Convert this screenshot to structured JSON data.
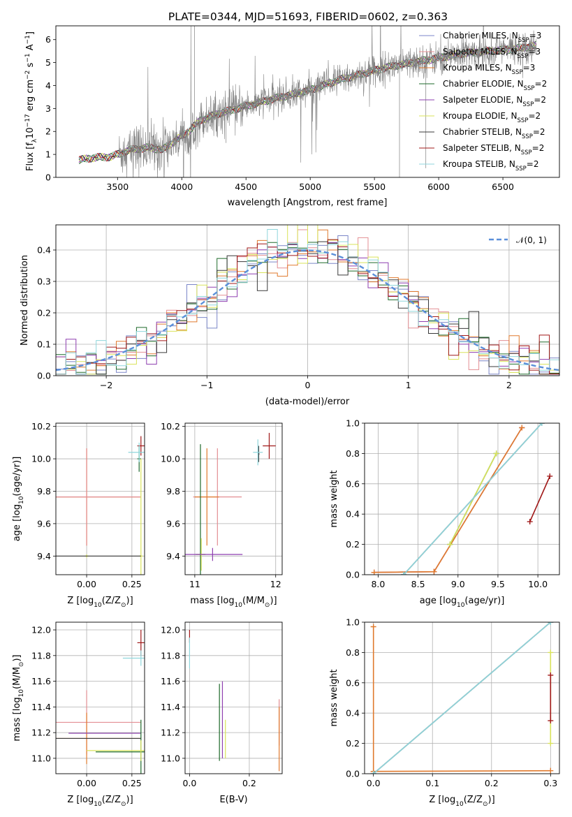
{
  "title": "PLATE=0344, MJD=51693, FIBERID=0602, z=0.363",
  "colors": {
    "Chabrier MILES": "#7b86c8",
    "Salpeter MILES": "#e38e93",
    "Kroupa MILES": "#e07a2e",
    "Chabrier ELODIE": "#1e6a2a",
    "Salpeter ELODIE": "#8e3fb0",
    "Kroupa ELODIE": "#d9e35a",
    "Chabrier STELIB": "#3a3a3a",
    "Salpeter STELIB": "#a01818",
    "Kroupa STELIB": "#8fd6dc",
    "data": "#808080",
    "normal": "#5b8fd9"
  },
  "legend": {
    "entries": [
      {
        "name": "Chabrier MILES",
        "pre": "Chabrier MILES, N",
        "sub": "SSP",
        "post": "=3"
      },
      {
        "name": "Salpeter MILES",
        "pre": "Salpeter MILES, N",
        "sub": "SSP",
        "post": "=3"
      },
      {
        "name": "Kroupa MILES",
        "pre": "Kroupa MILES, N",
        "sub": "SSP",
        "post": "=3"
      },
      {
        "name": "Chabrier ELODIE",
        "pre": "Chabrier ELODIE, N",
        "sub": "SSP",
        "post": "=2"
      },
      {
        "name": "Salpeter ELODIE",
        "pre": "Salpeter ELODIE, N",
        "sub": "SSP",
        "post": "=2"
      },
      {
        "name": "Kroupa ELODIE",
        "pre": "Kroupa ELODIE, N",
        "sub": "SSP",
        "post": "=2"
      },
      {
        "name": "Chabrier STELIB",
        "pre": "Chabrier STELIB, N",
        "sub": "SSP",
        "post": "=2"
      },
      {
        "name": "Salpeter STELIB",
        "pre": "Salpeter STELIB, N",
        "sub": "SSP",
        "post": "=2"
      },
      {
        "name": "Kroupa STELIB",
        "pre": "Kroupa STELIB, N",
        "sub": "SSP",
        "post": "=2"
      }
    ]
  },
  "chart_data": [
    {
      "id": "spectrum",
      "type": "line",
      "title": "PLATE=0344, MJD=51693, FIBERID=0602, z=0.363",
      "xlabel": "wavelength [Angstrom, rest frame]",
      "ylabel": "Flux [f",
      "ylabel_sub": "λ",
      "ylabel_rest": "10",
      "ylabel_sup1": "−17",
      "ylabel_mid": " erg cm",
      "ylabel_sup2": "−2",
      "ylabel_mid2": " s",
      "ylabel_sup3": "−1",
      "ylabel_mid3": " A",
      "ylabel_sup4": "−1",
      "ylabel_end": "]",
      "xlim": [
        3020,
        6940
      ],
      "ylim": [
        0,
        6.6
      ],
      "xticks": [
        3500,
        4000,
        4500,
        5000,
        5500,
        6000,
        6500
      ],
      "yticks": [
        0,
        1,
        2,
        3,
        4,
        5,
        6
      ],
      "continuum": [
        [
          3200,
          0.75
        ],
        [
          3300,
          0.85
        ],
        [
          3450,
          0.9
        ],
        [
          3600,
          1.2
        ],
        [
          3750,
          1.3
        ],
        [
          3850,
          1.2
        ],
        [
          3950,
          1.6
        ],
        [
          4050,
          2.0
        ],
        [
          4150,
          2.5
        ],
        [
          4300,
          2.8
        ],
        [
          4500,
          3.1
        ],
        [
          4700,
          3.4
        ],
        [
          4850,
          3.6
        ],
        [
          5000,
          3.8
        ],
        [
          5200,
          4.2
        ],
        [
          5400,
          4.5
        ],
        [
          5600,
          4.8
        ],
        [
          5800,
          5.0
        ],
        [
          6000,
          5.2
        ],
        [
          6200,
          5.4
        ],
        [
          6400,
          5.5
        ],
        [
          6600,
          5.6
        ],
        [
          6760,
          5.75
        ]
      ],
      "model_start": 3200,
      "model_end": 6760,
      "data_gap": [
        3220,
        3510
      ]
    },
    {
      "id": "residuals",
      "type": "step",
      "xlabel": "(data-model)/error",
      "ylabel": "Normed distribution",
      "xlim": [
        -2.5,
        2.5
      ],
      "ylim": [
        0,
        0.48
      ],
      "xticks": [
        -2,
        -1,
        0,
        1,
        2
      ],
      "xtick_labels": [
        "−2",
        "−1",
        "0",
        "1",
        "2"
      ],
      "yticks": [
        0.0,
        0.1,
        0.2,
        0.3,
        0.4
      ],
      "ytick_labels": [
        "0.0",
        "0.1",
        "0.2",
        "0.3",
        "0.4"
      ],
      "normal_label": "𝒩(0, 1)",
      "bins": 50
    },
    {
      "id": "age-Z",
      "type": "errorbar",
      "xlabel_pre": "Z [log",
      "xlabel_sub": "10",
      "xlabel_post": "(Z/Z",
      "xlabel_sub2": "⊙",
      "xlabel_end": ")]",
      "ylabel_pre": "age  [log",
      "ylabel_sub": "10",
      "ylabel_post": "(age/yr)]",
      "xlim": [
        -0.17,
        0.32
      ],
      "ylim": [
        9.285,
        10.22
      ],
      "xticks": [
        0.0,
        0.25
      ],
      "xtick_labels": [
        "0.00",
        "0.25"
      ],
      "yticks": [
        9.4,
        9.6,
        9.8,
        10.0,
        10.2
      ],
      "ytick_labels": [
        "9.4",
        "9.6",
        "9.8",
        "10.0",
        "10.2"
      ],
      "points": [
        {
          "s": "Kroupa MILES",
          "x": 0.0,
          "y": 9.765,
          "xerr": 0.3,
          "yerr": 0.3
        },
        {
          "s": "Salpeter MILES",
          "x": 0.0,
          "y": 9.765,
          "xerr": 0.3,
          "yerr": 0.3
        },
        {
          "s": "Chabrier ELODIE",
          "x": 0.29,
          "y": 10.0,
          "xerr": 0.01,
          "yerr": 0.08
        },
        {
          "s": "Kroupa ELODIE",
          "x": 0.0,
          "y": 9.4,
          "xerr": 0.01,
          "yerr": 0.01
        },
        {
          "s": "Kroupa ELODIE",
          "x": 0.3,
          "y": 9.4,
          "xerr": 0.01,
          "yerr": 0.6
        },
        {
          "s": "Salpeter STELIB",
          "x": 0.3,
          "y": 10.08,
          "xerr": 0.02,
          "yerr": 0.06
        },
        {
          "s": "Kroupa STELIB",
          "x": 0.29,
          "y": 10.04,
          "xerr": 0.06,
          "yerr": 0.06
        },
        {
          "s": "Chabrier STELIB",
          "x": 0.0,
          "y": 9.4,
          "xerr": 0.3,
          "yerr": 0.0
        }
      ]
    },
    {
      "id": "age-mass",
      "type": "errorbar",
      "xlabel_pre": "mass [log",
      "xlabel_sub": "10",
      "xlabel_post": "(M/M",
      "xlabel_sub2": "⊙",
      "xlabel_end": ")]",
      "xlim": [
        10.88,
        12.08
      ],
      "ylim": [
        9.285,
        10.22
      ],
      "xticks": [
        11,
        12
      ],
      "xtick_labels": [
        "11",
        "12"
      ],
      "yticks": [
        9.4,
        9.6,
        9.8,
        10.0,
        10.2
      ],
      "ytick_labels": [
        "9.4",
        "9.6",
        "9.8",
        "10.0",
        "10.2"
      ],
      "points": [
        {
          "s": "Salpeter MILES",
          "x": 11.28,
          "y": 9.765,
          "xerr": 0.3,
          "yerr": 0.3
        },
        {
          "s": "Kroupa MILES",
          "x": 11.15,
          "y": 9.765,
          "xerr": 0.15,
          "yerr": 0.3
        },
        {
          "s": "Chabrier ELODIE",
          "x": 11.07,
          "y": 9.41,
          "xerr": 0.06,
          "yerr": 0.68
        },
        {
          "s": "Kroupa ELODIE",
          "x": 11.08,
          "y": 9.41,
          "xerr": 0.06,
          "yerr": 0.1
        },
        {
          "s": "Salpeter ELODIE",
          "x": 11.22,
          "y": 9.41,
          "xerr": 0.37,
          "yerr": 0.04
        },
        {
          "s": "Chabrier STELIB",
          "x": 11.79,
          "y": 10.03,
          "xerr": 0.01,
          "yerr": 0.05
        },
        {
          "s": "Salpeter STELIB",
          "x": 11.92,
          "y": 10.08,
          "xerr": 0.08,
          "yerr": 0.08
        },
        {
          "s": "Kroupa STELIB",
          "x": 11.78,
          "y": 10.04,
          "xerr": 0.06,
          "yerr": 0.08
        }
      ]
    },
    {
      "id": "mw-age",
      "type": "line",
      "xlabel_pre": "age  [log",
      "xlabel_sub": "10",
      "xlabel_post": "(age/yr)]",
      "ylabel": "mass weight",
      "xlim": [
        7.83,
        10.27
      ],
      "ylim": [
        0,
        1.0
      ],
      "xticks": [
        8.0,
        8.5,
        9.0,
        9.5,
        10.0
      ],
      "xtick_labels": [
        "8.0",
        "8.5",
        "9.0",
        "9.5",
        "10.0"
      ],
      "yticks": [
        0.0,
        0.2,
        0.4,
        0.6,
        0.8,
        1.0
      ],
      "ytick_labels": [
        "0.0",
        "0.2",
        "0.4",
        "0.6",
        "0.8",
        "1.0"
      ],
      "lines": [
        {
          "s": "Chabrier MILES",
          "x": [
            7.95,
            8.7,
            9.8
          ],
          "y": [
            0.015,
            0.02,
            0.97
          ]
        },
        {
          "s": "Salpeter MILES",
          "x": [
            7.95,
            8.7,
            9.8
          ],
          "y": [
            0.015,
            0.02,
            0.97
          ]
        },
        {
          "s": "Kroupa MILES",
          "x": [
            7.95,
            8.7,
            9.8
          ],
          "y": [
            0.015,
            0.02,
            0.97
          ]
        },
        {
          "s": "Chabrier ELODIE",
          "x": [
            8.9,
            9.48
          ],
          "y": [
            0.2,
            0.8
          ]
        },
        {
          "s": "Kroupa ELODIE",
          "x": [
            8.9,
            9.48
          ],
          "y": [
            0.2,
            0.8
          ]
        },
        {
          "s": "Chabrier STELIB",
          "x": [
            8.32,
            10.05
          ],
          "y": [
            0.0,
            1.0
          ]
        },
        {
          "s": "Kroupa STELIB",
          "x": [
            8.32,
            10.05
          ],
          "y": [
            0.0,
            1.0
          ]
        },
        {
          "s": "Salpeter STELIB",
          "x": [
            9.9,
            10.15
          ],
          "y": [
            0.35,
            0.65
          ]
        }
      ]
    },
    {
      "id": "mass-Z",
      "type": "errorbar",
      "xlabel_pre": "Z [log",
      "xlabel_sub": "10",
      "xlabel_post": "(Z/Z",
      "xlabel_sub2": "⊙",
      "xlabel_end": ")]",
      "ylabel_pre": "mass [log",
      "ylabel_sub": "10",
      "ylabel_post": "(M/M",
      "ylabel_sub2": "⊙",
      "ylabel_end": ")]",
      "xlim": [
        -0.17,
        0.32
      ],
      "ylim": [
        10.88,
        12.06
      ],
      "xticks": [
        0.0,
        0.25
      ],
      "xtick_labels": [
        "0.00",
        "0.25"
      ],
      "yticks": [
        11.0,
        11.2,
        11.4,
        11.6,
        11.8,
        12.0
      ],
      "ytick_labels": [
        "11.0",
        "11.2",
        "11.4",
        "11.6",
        "11.8",
        "12.0"
      ],
      "points": [
        {
          "s": "Salpeter MILES",
          "x": 0.0,
          "y": 11.28,
          "xerr": 0.3,
          "yerr": 0.25
        },
        {
          "s": "Kroupa MILES",
          "x": 0.0,
          "y": 11.155,
          "xerr": 0.3,
          "yerr": 0.2
        },
        {
          "s": "Salpeter ELODIE",
          "x": 0.1,
          "y": 11.195,
          "xerr": 0.2,
          "yerr": 0.0
        },
        {
          "s": "Chabrier ELODIE",
          "x": 0.3,
          "y": 11.05,
          "xerr": 0.25,
          "yerr": 0.25
        },
        {
          "s": "Kroupa ELODIE",
          "x": 0.3,
          "y": 11.06,
          "xerr": 0.3,
          "yerr": 0.08
        },
        {
          "s": "Salpeter STELIB",
          "x": 0.3,
          "y": 11.9,
          "xerr": 0.02,
          "yerr": 0.1
        },
        {
          "s": "Kroupa STELIB",
          "x": 0.3,
          "y": 11.78,
          "xerr": 0.1,
          "yerr": 0.06
        },
        {
          "s": "Chabrier STELIB",
          "x": 0.0,
          "y": 11.155,
          "xerr": 0.3,
          "yerr": 0.0
        }
      ]
    },
    {
      "id": "mass-ebv",
      "type": "errorbar",
      "xlabel": "E(B-V)",
      "xlim": [
        -0.015,
        0.31
      ],
      "ylim": [
        10.88,
        12.06
      ],
      "xticks": [
        0.0,
        0.2
      ],
      "xtick_labels": [
        "0.0",
        "0.2"
      ],
      "yticks": [
        11.0,
        11.2,
        11.4,
        11.6,
        11.8,
        12.0
      ],
      "ytick_labels": [
        "11.0",
        "11.2",
        "11.4",
        "11.6",
        "11.8",
        "12.0"
      ],
      "points": [
        {
          "s": "Salpeter STELIB",
          "x": 0.0,
          "y": 11.95,
          "xerr": 0.0,
          "yerr": 0.05
        },
        {
          "s": "Kroupa STELIB",
          "x": 0.0,
          "y": 11.82,
          "xerr": 0.0,
          "yerr": 0.12
        },
        {
          "s": "Chabrier ELODIE",
          "x": 0.1,
          "y": 11.28,
          "xerr": 0.0,
          "yerr": 0.3
        },
        {
          "s": "Salpeter ELODIE",
          "x": 0.11,
          "y": 11.3,
          "xerr": 0.0,
          "yerr": 0.3
        },
        {
          "s": "Kroupa ELODIE",
          "x": 0.12,
          "y": 11.15,
          "xerr": 0.0,
          "yerr": 0.15
        },
        {
          "s": "Salpeter MILES",
          "x": 0.3,
          "y": 11.28,
          "xerr": 0.0,
          "yerr": 0.18
        },
        {
          "s": "Kroupa MILES",
          "x": 0.3,
          "y": 11.15,
          "xerr": 0.0,
          "yerr": 0.25
        }
      ]
    },
    {
      "id": "mw-Z",
      "type": "line",
      "xlabel_pre": "Z [log",
      "xlabel_sub": "10",
      "xlabel_post": "(Z/Z",
      "xlabel_sub2": "⊙",
      "xlabel_end": ")]",
      "ylabel": "mass weight",
      "xlim": [
        -0.015,
        0.315
      ],
      "ylim": [
        0,
        1.0
      ],
      "xticks": [
        0.0,
        0.1,
        0.2,
        0.3
      ],
      "xtick_labels": [
        "0.0",
        "0.1",
        "0.2",
        "0.3"
      ],
      "yticks": [
        0.0,
        0.2,
        0.4,
        0.6,
        0.8,
        1.0
      ],
      "ytick_labels": [
        "0.0",
        "0.2",
        "0.4",
        "0.6",
        "0.8",
        "1.0"
      ],
      "lines": [
        {
          "s": "Kroupa MILES",
          "x": [
            0.0,
            0.0,
            0.3
          ],
          "y": [
            0.97,
            0.015,
            0.02
          ]
        },
        {
          "s": "Chabrier STELIB",
          "x": [
            0.0,
            0.3
          ],
          "y": [
            0.0,
            1.0
          ]
        },
        {
          "s": "Kroupa STELIB",
          "x": [
            0.0,
            0.3
          ],
          "y": [
            0.0,
            1.0
          ]
        },
        {
          "s": "Kroupa ELODIE",
          "x": [
            0.3,
            0.3
          ],
          "y": [
            0.2,
            0.8
          ]
        },
        {
          "s": "Salpeter STELIB",
          "x": [
            0.3,
            0.3
          ],
          "y": [
            0.35,
            0.65
          ]
        }
      ]
    }
  ]
}
